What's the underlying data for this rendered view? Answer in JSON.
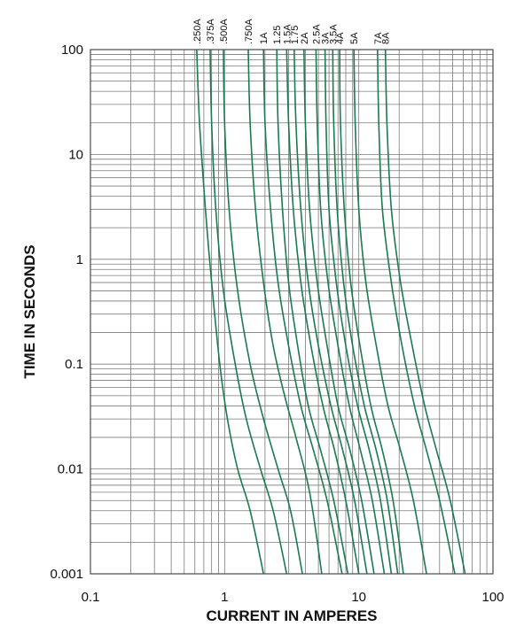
{
  "chart_data": {
    "type": "line",
    "title": "",
    "xlabel": "CURRENT IN AMPERES",
    "ylabel": "TIME IN SECONDS",
    "xscale": "log",
    "yscale": "log",
    "xlim": [
      0.1,
      100
    ],
    "ylim": [
      0.001,
      100
    ],
    "x_ticks": [
      0.1,
      1,
      10,
      100
    ],
    "x_tick_labels": [
      "0.1",
      "1",
      "10",
      "100"
    ],
    "y_ticks": [
      0.001,
      0.01,
      0.1,
      1,
      10,
      100
    ],
    "y_tick_labels": [
      "0.001",
      "0.01",
      "0.1",
      "1",
      "10",
      "100"
    ],
    "grid": true,
    "line_color": "#1a7a50",
    "series": [
      {
        "name": ".250A",
        "points": [
          [
            0.62,
            100
          ],
          [
            0.65,
            20
          ],
          [
            0.72,
            3
          ],
          [
            0.8,
            0.6
          ],
          [
            0.92,
            0.1
          ],
          [
            1.05,
            0.03
          ],
          [
            1.25,
            0.01
          ],
          [
            1.55,
            0.004
          ],
          [
            1.95,
            0.001
          ]
        ]
      },
      {
        "name": ".375A",
        "points": [
          [
            0.78,
            100
          ],
          [
            0.8,
            20
          ],
          [
            0.86,
            3
          ],
          [
            0.98,
            0.5
          ],
          [
            1.2,
            0.1
          ],
          [
            1.45,
            0.03
          ],
          [
            1.85,
            0.01
          ],
          [
            2.3,
            0.004
          ],
          [
            2.9,
            0.001
          ]
        ]
      },
      {
        "name": ".500A",
        "points": [
          [
            0.98,
            100
          ],
          [
            1.0,
            20
          ],
          [
            1.08,
            3
          ],
          [
            1.25,
            0.5
          ],
          [
            1.55,
            0.1
          ],
          [
            1.95,
            0.03
          ],
          [
            2.5,
            0.01
          ],
          [
            3.1,
            0.004
          ],
          [
            3.8,
            0.001
          ]
        ]
      },
      {
        "name": ".750A",
        "points": [
          [
            1.5,
            100
          ],
          [
            1.55,
            20
          ],
          [
            1.7,
            3
          ],
          [
            1.95,
            0.6
          ],
          [
            2.3,
            0.15
          ],
          [
            2.8,
            0.05
          ],
          [
            3.4,
            0.02
          ],
          [
            4.3,
            0.006
          ],
          [
            5.3,
            0.001
          ]
        ]
      },
      {
        "name": "1A",
        "points": [
          [
            1.95,
            100
          ],
          [
            2.0,
            20
          ],
          [
            2.2,
            3
          ],
          [
            2.5,
            0.6
          ],
          [
            3.0,
            0.15
          ],
          [
            3.7,
            0.04
          ],
          [
            4.6,
            0.015
          ],
          [
            5.8,
            0.005
          ],
          [
            7.5,
            0.001
          ]
        ]
      },
      {
        "name": "1.25",
        "points": [
          [
            2.45,
            100
          ],
          [
            2.5,
            20
          ],
          [
            2.7,
            3
          ],
          [
            3.0,
            0.6
          ],
          [
            3.5,
            0.15
          ],
          [
            4.2,
            0.04
          ],
          [
            5.2,
            0.015
          ],
          [
            6.5,
            0.005
          ],
          [
            8.3,
            0.001
          ]
        ]
      },
      {
        "name": "1.5A",
        "points": [
          [
            2.9,
            100
          ],
          [
            3.0,
            20
          ],
          [
            3.25,
            3
          ],
          [
            3.7,
            0.6
          ],
          [
            4.4,
            0.15
          ],
          [
            5.4,
            0.04
          ],
          [
            6.6,
            0.015
          ],
          [
            8.0,
            0.005
          ],
          [
            10.0,
            0.001
          ]
        ]
      },
      {
        "name": "1.75",
        "points": [
          [
            3.3,
            100
          ],
          [
            3.4,
            20
          ],
          [
            3.7,
            3
          ],
          [
            4.2,
            0.6
          ],
          [
            5.0,
            0.15
          ],
          [
            6.2,
            0.04
          ],
          [
            7.6,
            0.015
          ],
          [
            9.3,
            0.005
          ],
          [
            11.5,
            0.001
          ]
        ]
      },
      {
        "name": "2A",
        "points": [
          [
            3.9,
            100
          ],
          [
            4.0,
            20
          ],
          [
            4.3,
            3
          ],
          [
            4.9,
            0.6
          ],
          [
            5.8,
            0.15
          ],
          [
            7.0,
            0.04
          ],
          [
            8.6,
            0.015
          ],
          [
            10.5,
            0.005
          ],
          [
            13.0,
            0.001
          ]
        ]
      },
      {
        "name": "2.5A",
        "points": [
          [
            4.8,
            100
          ],
          [
            4.9,
            20
          ],
          [
            5.2,
            3
          ],
          [
            5.9,
            0.6
          ],
          [
            7.0,
            0.15
          ],
          [
            8.5,
            0.04
          ],
          [
            10.3,
            0.015
          ],
          [
            12.6,
            0.005
          ],
          [
            15.5,
            0.001
          ]
        ]
      },
      {
        "name": "3A",
        "points": [
          [
            5.6,
            100
          ],
          [
            5.7,
            20
          ],
          [
            6.0,
            3
          ],
          [
            6.8,
            0.6
          ],
          [
            8.0,
            0.15
          ],
          [
            9.8,
            0.04
          ],
          [
            12.0,
            0.015
          ],
          [
            14.5,
            0.005
          ],
          [
            17.5,
            0.001
          ]
        ]
      },
      {
        "name": "3.5A",
        "points": [
          [
            6.4,
            100
          ],
          [
            6.5,
            20
          ],
          [
            6.9,
            3
          ],
          [
            7.7,
            0.6
          ],
          [
            9.0,
            0.15
          ],
          [
            11.0,
            0.04
          ],
          [
            13.5,
            0.015
          ],
          [
            16.3,
            0.005
          ],
          [
            19.5,
            0.001
          ]
        ]
      },
      {
        "name": "4A",
        "points": [
          [
            7.2,
            100
          ],
          [
            7.3,
            20
          ],
          [
            7.8,
            3
          ],
          [
            8.7,
            0.6
          ],
          [
            10.2,
            0.15
          ],
          [
            12.3,
            0.04
          ],
          [
            15.0,
            0.015
          ],
          [
            18.0,
            0.005
          ],
          [
            21.5,
            0.001
          ]
        ]
      },
      {
        "name": "5A",
        "points": [
          [
            9.2,
            100
          ],
          [
            9.4,
            20
          ],
          [
            10.0,
            3
          ],
          [
            11.3,
            0.6
          ],
          [
            13.5,
            0.15
          ],
          [
            16.5,
            0.04
          ],
          [
            20.5,
            0.015
          ],
          [
            25.5,
            0.005
          ],
          [
            32.0,
            0.001
          ]
        ]
      },
      {
        "name": "7A",
        "points": [
          [
            13.8,
            100
          ],
          [
            14.1,
            20
          ],
          [
            15.0,
            3
          ],
          [
            17.5,
            0.6
          ],
          [
            21.0,
            0.15
          ],
          [
            26.0,
            0.04
          ],
          [
            32.0,
            0.015
          ],
          [
            40.0,
            0.005
          ],
          [
            52.0,
            0.001
          ]
        ]
      },
      {
        "name": "8A",
        "points": [
          [
            15.8,
            100
          ],
          [
            16.2,
            20
          ],
          [
            17.5,
            3
          ],
          [
            20.5,
            0.6
          ],
          [
            25.0,
            0.15
          ],
          [
            31.0,
            0.04
          ],
          [
            38.0,
            0.015
          ],
          [
            48.0,
            0.005
          ],
          [
            62.0,
            0.001
          ]
        ]
      }
    ]
  }
}
